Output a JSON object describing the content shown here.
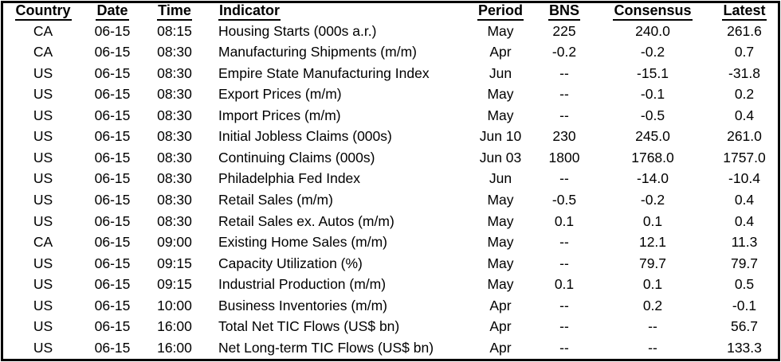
{
  "colors": {
    "text": "#000000",
    "background": "#ffffff",
    "border": "#000000"
  },
  "table": {
    "columns": [
      {
        "key": "country",
        "label": "Country",
        "align": "center"
      },
      {
        "key": "date",
        "label": "Date",
        "align": "center"
      },
      {
        "key": "time",
        "label": "Time",
        "align": "center"
      },
      {
        "key": "indicator",
        "label": "Indicator",
        "align": "left"
      },
      {
        "key": "period",
        "label": "Period",
        "align": "center"
      },
      {
        "key": "bns",
        "label": "BNS",
        "align": "center"
      },
      {
        "key": "consensus",
        "label": "Consensus",
        "align": "center"
      },
      {
        "key": "latest",
        "label": "Latest",
        "align": "center"
      }
    ],
    "rows": [
      {
        "country": "CA",
        "date": "06-15",
        "time": "08:15",
        "indicator": "Housing Starts (000s a.r.)",
        "period": "May",
        "bns": "225",
        "consensus": "240.0",
        "latest": "261.6"
      },
      {
        "country": "CA",
        "date": "06-15",
        "time": "08:30",
        "indicator": "Manufacturing Shipments (m/m)",
        "period": "Apr",
        "bns": "-0.2",
        "consensus": "-0.2",
        "latest": "0.7"
      },
      {
        "country": "US",
        "date": "06-15",
        "time": "08:30",
        "indicator": "Empire State Manufacturing Index",
        "period": "Jun",
        "bns": "--",
        "consensus": "-15.1",
        "latest": "-31.8"
      },
      {
        "country": "US",
        "date": "06-15",
        "time": "08:30",
        "indicator": "Export Prices (m/m)",
        "period": "May",
        "bns": "--",
        "consensus": "-0.1",
        "latest": "0.2"
      },
      {
        "country": "US",
        "date": "06-15",
        "time": "08:30",
        "indicator": "Import Prices (m/m)",
        "period": "May",
        "bns": "--",
        "consensus": "-0.5",
        "latest": "0.4"
      },
      {
        "country": "US",
        "date": "06-15",
        "time": "08:30",
        "indicator": "Initial Jobless Claims (000s)",
        "period": "Jun 10",
        "bns": "230",
        "consensus": "245.0",
        "latest": "261.0"
      },
      {
        "country": "US",
        "date": "06-15",
        "time": "08:30",
        "indicator": "Continuing Claims (000s)",
        "period": "Jun 03",
        "bns": "1800",
        "consensus": "1768.0",
        "latest": "1757.0"
      },
      {
        "country": "US",
        "date": "06-15",
        "time": "08:30",
        "indicator": "Philadelphia Fed Index",
        "period": "Jun",
        "bns": "--",
        "consensus": "-14.0",
        "latest": "-10.4"
      },
      {
        "country": "US",
        "date": "06-15",
        "time": "08:30",
        "indicator": "Retail Sales (m/m)",
        "period": "May",
        "bns": "-0.5",
        "consensus": "-0.2",
        "latest": "0.4"
      },
      {
        "country": "US",
        "date": "06-15",
        "time": "08:30",
        "indicator": "Retail Sales ex. Autos (m/m)",
        "period": "May",
        "bns": "0.1",
        "consensus": "0.1",
        "latest": "0.4"
      },
      {
        "country": "CA",
        "date": "06-15",
        "time": "09:00",
        "indicator": "Existing Home Sales (m/m)",
        "period": "May",
        "bns": "--",
        "consensus": "12.1",
        "latest": "11.3"
      },
      {
        "country": "US",
        "date": "06-15",
        "time": "09:15",
        "indicator": "Capacity Utilization (%)",
        "period": "May",
        "bns": "--",
        "consensus": "79.7",
        "latest": "79.7"
      },
      {
        "country": "US",
        "date": "06-15",
        "time": "09:15",
        "indicator": "Industrial Production (m/m)",
        "period": "May",
        "bns": "0.1",
        "consensus": "0.1",
        "latest": "0.5"
      },
      {
        "country": "US",
        "date": "06-15",
        "time": "10:00",
        "indicator": "Business Inventories (m/m)",
        "period": "Apr",
        "bns": "--",
        "consensus": "0.2",
        "latest": "-0.1"
      },
      {
        "country": "US",
        "date": "06-15",
        "time": "16:00",
        "indicator": "Total Net TIC Flows (US$ bn)",
        "period": "Apr",
        "bns": "--",
        "consensus": "--",
        "latest": "56.7"
      },
      {
        "country": "US",
        "date": "06-15",
        "time": "16:00",
        "indicator": "Net Long-term TIC Flows (US$ bn)",
        "period": "Apr",
        "bns": "--",
        "consensus": "--",
        "latest": "133.3"
      }
    ]
  }
}
